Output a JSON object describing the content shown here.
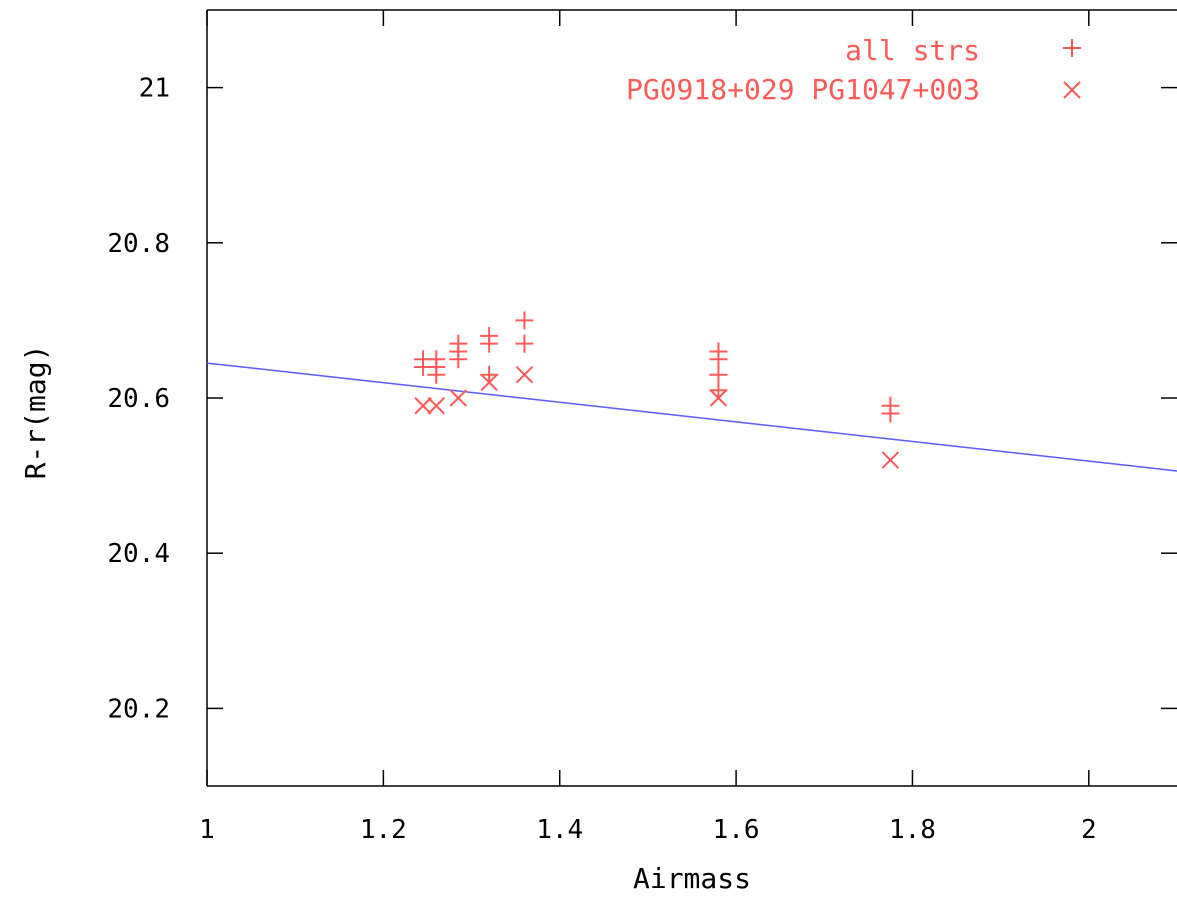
{
  "chart_data": {
    "type": "scatter",
    "xlabel": "Airmass",
    "ylabel": "R-r(mag)",
    "xlim": [
      1.0,
      2.1
    ],
    "ylim": [
      20.1,
      21.1
    ],
    "x_ticks": [
      1,
      1.2,
      1.4,
      1.6,
      1.8,
      2
    ],
    "x_tick_labels": [
      "1",
      "1.2",
      "1.4",
      "1.6",
      "1.8",
      "2"
    ],
    "y_ticks": [
      20.2,
      20.4,
      20.6,
      20.8,
      21
    ],
    "y_tick_labels": [
      "20.2",
      "20.4",
      "20.6",
      "20.8",
      "21"
    ],
    "grid": false,
    "legend_position": "top-right",
    "series": [
      {
        "name": "all strs",
        "marker": "plus",
        "color": "#ff5a5a",
        "points": [
          [
            1.245,
            20.65
          ],
          [
            1.245,
            20.64
          ],
          [
            1.26,
            20.65
          ],
          [
            1.26,
            20.64
          ],
          [
            1.26,
            20.63
          ],
          [
            1.285,
            20.67
          ],
          [
            1.285,
            20.66
          ],
          [
            1.285,
            20.65
          ],
          [
            1.32,
            20.68
          ],
          [
            1.32,
            20.67
          ],
          [
            1.32,
            20.63
          ],
          [
            1.36,
            20.7
          ],
          [
            1.36,
            20.67
          ],
          [
            1.58,
            20.66
          ],
          [
            1.58,
            20.65
          ],
          [
            1.58,
            20.63
          ],
          [
            1.58,
            20.61
          ],
          [
            1.775,
            20.59
          ],
          [
            1.775,
            20.58
          ]
        ]
      },
      {
        "name": "PG0918+029 PG1047+003",
        "marker": "cross",
        "color": "#ff5a5a",
        "points": [
          [
            1.245,
            20.59
          ],
          [
            1.26,
            20.59
          ],
          [
            1.285,
            20.6
          ],
          [
            1.32,
            20.62
          ],
          [
            1.36,
            20.63
          ],
          [
            1.58,
            20.6
          ],
          [
            1.775,
            20.52
          ]
        ]
      }
    ],
    "fit_line": {
      "type": "line",
      "color": "#5a5aff",
      "x": [
        1.0,
        2.1
      ],
      "y": [
        20.645,
        20.506
      ]
    }
  }
}
